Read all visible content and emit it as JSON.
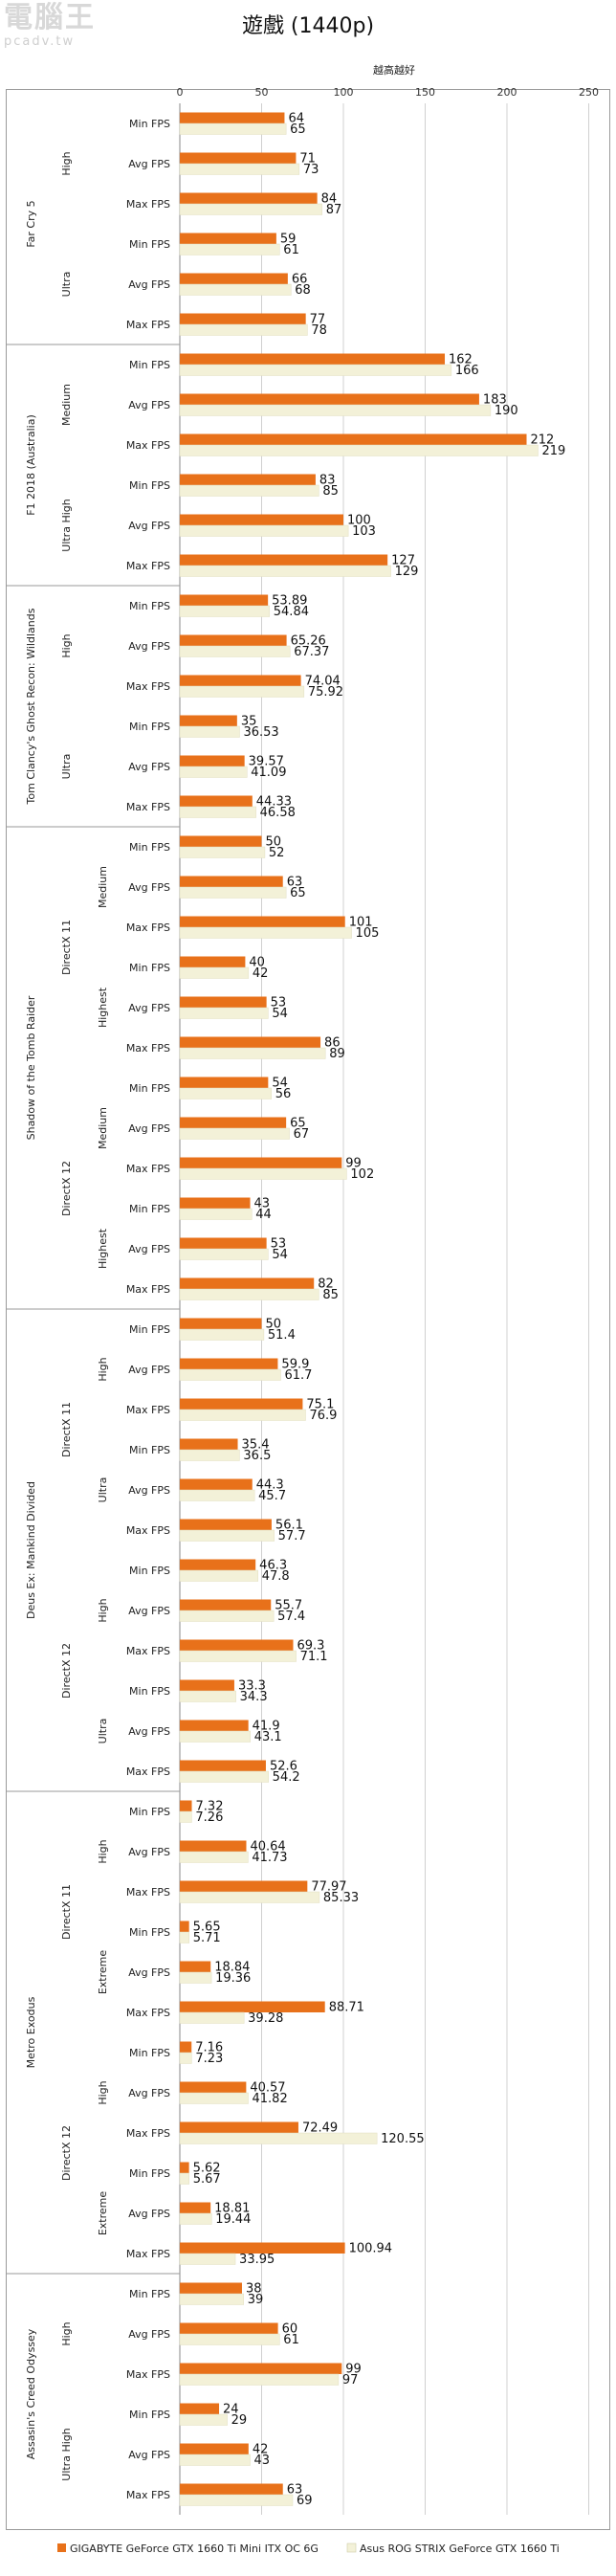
{
  "watermark": {
    "title": "電腦王",
    "site": "pcadv.tw"
  },
  "chart_data": {
    "type": "bar",
    "orientation": "horizontal",
    "title": "遊戲 (1440p)",
    "axis_title": "越高越好",
    "xlim": [
      0,
      250
    ],
    "xticks": [
      0,
      50,
      100,
      150,
      200,
      250
    ],
    "grid": true,
    "legend_position": "bottom",
    "series": [
      {
        "name": "GIGABYTE GeForce GTX 1660 Ti Mini ITX OC 6G",
        "color": "#e8711a"
      },
      {
        "name": "Asus ROG STRIX GeForce GTX 1660 Ti",
        "color": "#f3f1d8"
      }
    ],
    "games": [
      {
        "name": "Far Cry 5",
        "apis": [
          {
            "name": "",
            "presets": [
              {
                "name": "High",
                "rows": [
                  {
                    "label": "Min FPS",
                    "v": [
                      "64",
                      "65"
                    ]
                  },
                  {
                    "label": "Avg FPS",
                    "v": [
                      "71",
                      "73"
                    ]
                  },
                  {
                    "label": "Max FPS",
                    "v": [
                      "84",
                      "87"
                    ]
                  }
                ]
              },
              {
                "name": "Ultra",
                "rows": [
                  {
                    "label": "Min FPS",
                    "v": [
                      "59",
                      "61"
                    ]
                  },
                  {
                    "label": "Avg FPS",
                    "v": [
                      "66",
                      "68"
                    ]
                  },
                  {
                    "label": "Max FPS",
                    "v": [
                      "77",
                      "78"
                    ]
                  }
                ]
              }
            ]
          }
        ]
      },
      {
        "name": "F1 2018 (Australia)",
        "apis": [
          {
            "name": "",
            "presets": [
              {
                "name": "Medium",
                "rows": [
                  {
                    "label": "Min FPS",
                    "v": [
                      "162",
                      "166"
                    ]
                  },
                  {
                    "label": "Avg FPS",
                    "v": [
                      "183",
                      "190"
                    ]
                  },
                  {
                    "label": "Max FPS",
                    "v": [
                      "212",
                      "219"
                    ]
                  }
                ]
              },
              {
                "name": "Ultra High",
                "rows": [
                  {
                    "label": "Min FPS",
                    "v": [
                      "83",
                      "85"
                    ]
                  },
                  {
                    "label": "Avg FPS",
                    "v": [
                      "100",
                      "103"
                    ]
                  },
                  {
                    "label": "Max FPS",
                    "v": [
                      "127",
                      "129"
                    ]
                  }
                ]
              }
            ]
          }
        ]
      },
      {
        "name": "Tom Clancy's Ghost Recon: Wildlands",
        "apis": [
          {
            "name": "",
            "presets": [
              {
                "name": "High",
                "rows": [
                  {
                    "label": "Min FPS",
                    "v": [
                      "53.89",
                      "54.84"
                    ]
                  },
                  {
                    "label": "Avg FPS",
                    "v": [
                      "65.26",
                      "67.37"
                    ]
                  },
                  {
                    "label": "Max FPS",
                    "v": [
                      "74.04",
                      "75.92"
                    ]
                  }
                ]
              },
              {
                "name": "Ultra",
                "rows": [
                  {
                    "label": "Min FPS",
                    "v": [
                      "35",
                      "36.53"
                    ]
                  },
                  {
                    "label": "Avg FPS",
                    "v": [
                      "39.57",
                      "41.09"
                    ]
                  },
                  {
                    "label": "Max FPS",
                    "v": [
                      "44.33",
                      "46.58"
                    ]
                  }
                ]
              }
            ]
          }
        ]
      },
      {
        "name": "Shadow of the Tomb Raider",
        "apis": [
          {
            "name": "DirectX 11",
            "presets": [
              {
                "name": "Medium",
                "rows": [
                  {
                    "label": "Min FPS",
                    "v": [
                      "50",
                      "52"
                    ]
                  },
                  {
                    "label": "Avg FPS",
                    "v": [
                      "63",
                      "65"
                    ]
                  },
                  {
                    "label": "Max FPS",
                    "v": [
                      "101",
                      "105"
                    ]
                  }
                ]
              },
              {
                "name": "Highest",
                "rows": [
                  {
                    "label": "Min FPS",
                    "v": [
                      "40",
                      "42"
                    ]
                  },
                  {
                    "label": "Avg FPS",
                    "v": [
                      "53",
                      "54"
                    ]
                  },
                  {
                    "label": "Max FPS",
                    "v": [
                      "86",
                      "89"
                    ]
                  }
                ]
              }
            ]
          },
          {
            "name": "DirectX 12",
            "presets": [
              {
                "name": "Medium",
                "rows": [
                  {
                    "label": "Min FPS",
                    "v": [
                      "54",
                      "56"
                    ]
                  },
                  {
                    "label": "Avg FPS",
                    "v": [
                      "65",
                      "67"
                    ]
                  },
                  {
                    "label": "Max FPS",
                    "v": [
                      "99",
                      "102"
                    ]
                  }
                ]
              },
              {
                "name": "Highest",
                "rows": [
                  {
                    "label": "Min FPS",
                    "v": [
                      "43",
                      "44"
                    ]
                  },
                  {
                    "label": "Avg FPS",
                    "v": [
                      "53",
                      "54"
                    ]
                  },
                  {
                    "label": "Max FPS",
                    "v": [
                      "82",
                      "85"
                    ]
                  }
                ]
              }
            ]
          }
        ]
      },
      {
        "name": "Deus Ex: Mankind Divided",
        "apis": [
          {
            "name": "DirectX 11",
            "presets": [
              {
                "name": "High",
                "rows": [
                  {
                    "label": "Min FPS",
                    "v": [
                      "50",
                      "51.4"
                    ]
                  },
                  {
                    "label": "Avg FPS",
                    "v": [
                      "59.9",
                      "61.7"
                    ]
                  },
                  {
                    "label": "Max FPS",
                    "v": [
                      "75.1",
                      "76.9"
                    ]
                  }
                ]
              },
              {
                "name": "Ultra",
                "rows": [
                  {
                    "label": "Min FPS",
                    "v": [
                      "35.4",
                      "36.5"
                    ]
                  },
                  {
                    "label": "Avg FPS",
                    "v": [
                      "44.3",
                      "45.7"
                    ]
                  },
                  {
                    "label": "Max FPS",
                    "v": [
                      "56.1",
                      "57.7"
                    ]
                  }
                ]
              }
            ]
          },
          {
            "name": "DirectX 12",
            "presets": [
              {
                "name": "High",
                "rows": [
                  {
                    "label": "Min FPS",
                    "v": [
                      "46.3",
                      "47.8"
                    ]
                  },
                  {
                    "label": "Avg FPS",
                    "v": [
                      "55.7",
                      "57.4"
                    ]
                  },
                  {
                    "label": "Max FPS",
                    "v": [
                      "69.3",
                      "71.1"
                    ]
                  }
                ]
              },
              {
                "name": "Ultra",
                "rows": [
                  {
                    "label": "Min FPS",
                    "v": [
                      "33.3",
                      "34.3"
                    ]
                  },
                  {
                    "label": "Avg FPS",
                    "v": [
                      "41.9",
                      "43.1"
                    ]
                  },
                  {
                    "label": "Max FPS",
                    "v": [
                      "52.6",
                      "54.2"
                    ]
                  }
                ]
              }
            ]
          }
        ]
      },
      {
        "name": "Metro Exodus",
        "apis": [
          {
            "name": "DirectX 11",
            "presets": [
              {
                "name": "High",
                "rows": [
                  {
                    "label": "Min FPS",
                    "v": [
                      "7.32",
                      "7.26"
                    ]
                  },
                  {
                    "label": "Avg FPS",
                    "v": [
                      "40.64",
                      "41.73"
                    ]
                  },
                  {
                    "label": "Max FPS",
                    "v": [
                      "77.97",
                      "85.33"
                    ]
                  }
                ]
              },
              {
                "name": "Extreme",
                "rows": [
                  {
                    "label": "Min FPS",
                    "v": [
                      "5.65",
                      "5.71"
                    ]
                  },
                  {
                    "label": "Avg FPS",
                    "v": [
                      "18.84",
                      "19.36"
                    ]
                  },
                  {
                    "label": "Max FPS",
                    "v": [
                      "88.71",
                      "39.28"
                    ]
                  }
                ]
              }
            ]
          },
          {
            "name": "DirectX 12",
            "presets": [
              {
                "name": "High",
                "rows": [
                  {
                    "label": "Min FPS",
                    "v": [
                      "7.16",
                      "7.23"
                    ]
                  },
                  {
                    "label": "Avg FPS",
                    "v": [
                      "40.57",
                      "41.82"
                    ]
                  },
                  {
                    "label": "Max FPS",
                    "v": [
                      "72.49",
                      "120.55"
                    ]
                  }
                ]
              },
              {
                "name": "Extreme",
                "rows": [
                  {
                    "label": "Min FPS",
                    "v": [
                      "5.62",
                      "5.67"
                    ]
                  },
                  {
                    "label": "Avg FPS",
                    "v": [
                      "18.81",
                      "19.44"
                    ]
                  },
                  {
                    "label": "Max FPS",
                    "v": [
                      "100.94",
                      "33.95"
                    ]
                  }
                ]
              }
            ]
          }
        ]
      },
      {
        "name": "Assasin's Creed Odyssey",
        "apis": [
          {
            "name": "",
            "presets": [
              {
                "name": "High",
                "rows": [
                  {
                    "label": "Min FPS",
                    "v": [
                      "38",
                      "39"
                    ]
                  },
                  {
                    "label": "Avg FPS",
                    "v": [
                      "60",
                      "61"
                    ]
                  },
                  {
                    "label": "Max FPS",
                    "v": [
                      "99",
                      "97"
                    ]
                  }
                ]
              },
              {
                "name": "Ultra High",
                "rows": [
                  {
                    "label": "Min FPS",
                    "v": [
                      "24",
                      "29"
                    ]
                  },
                  {
                    "label": "Avg FPS",
                    "v": [
                      "42",
                      "43"
                    ]
                  },
                  {
                    "label": "Max FPS",
                    "v": [
                      "63",
                      "69"
                    ]
                  }
                ]
              }
            ]
          }
        ]
      }
    ]
  }
}
